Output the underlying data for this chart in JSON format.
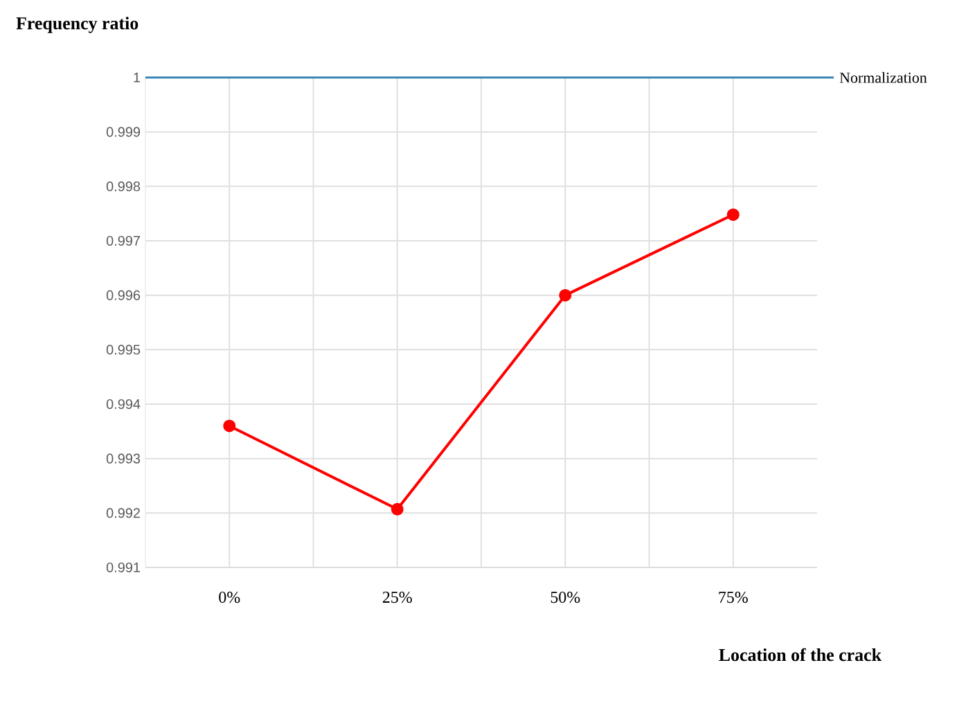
{
  "chart_data": {
    "type": "line",
    "xlabel": "Location of the crack",
    "ylabel": "Frequency ratio",
    "categories": [
      "0%",
      "25%",
      "50%",
      "75%"
    ],
    "series": [
      {
        "color": "#ff0000",
        "values": [
          0.9936,
          0.99207,
          0.996,
          0.99748
        ]
      }
    ],
    "marker": "circle",
    "line_style": "solid",
    "ylim": [
      0.991,
      1
    ],
    "yticks": [
      0.991,
      0.992,
      0.993,
      0.994,
      0.995,
      0.996,
      0.997,
      0.998,
      0.999,
      1
    ],
    "grid": true,
    "ref_lines": [
      {
        "axis": "y",
        "value": 1,
        "label": "Normalization",
        "color": "#3a87b5"
      }
    ]
  }
}
